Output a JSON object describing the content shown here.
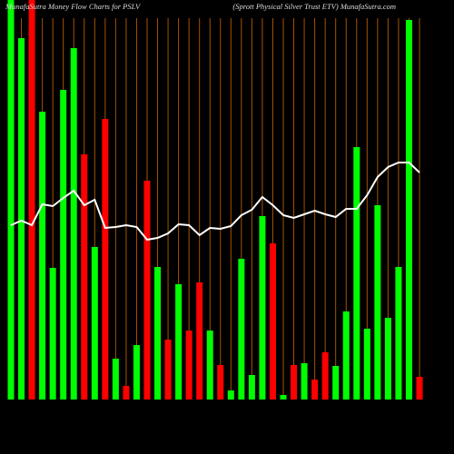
{
  "chart_data": {
    "type": "bar",
    "title": "MunafaSutra  Money Flow  Charts for PSLV",
    "subtitle": "(Sprott Physical Silver Trust ETV) MunafaSutra.com",
    "values": [
      440,
      398,
      440,
      317,
      145,
      341,
      387,
      270,
      168,
      309,
      45,
      15,
      60,
      241,
      146,
      66,
      127,
      76,
      129,
      76,
      38,
      10,
      155,
      27,
      202,
      172,
      5,
      38,
      40,
      22,
      52,
      37,
      97,
      278,
      78,
      214,
      90,
      146,
      418,
      25
    ],
    "colors": [
      "#00ff00",
      "#00ff00",
      "#ff0000",
      "#00ff00",
      "#00ff00",
      "#00ff00",
      "#00ff00",
      "#ff0000",
      "#00ff00",
      "#ff0000",
      "#00ff00",
      "#ff0000",
      "#00ff00",
      "#ff0000",
      "#00ff00",
      "#ff0000",
      "#00ff00",
      "#ff0000",
      "#ff0000",
      "#00ff00",
      "#ff0000",
      "#00ff00",
      "#00ff00",
      "#00ff00",
      "#00ff00",
      "#ff0000",
      "#00ff00",
      "#ff0000",
      "#00ff00",
      "#ff0000",
      "#ff0000",
      "#00ff00",
      "#00ff00",
      "#00ff00",
      "#00ff00",
      "#00ff00",
      "#00ff00",
      "#00ff00",
      "#00ff00",
      "#ff0000"
    ],
    "line": {
      "color": "#ffffff",
      "values": [
        192,
        197,
        192,
        215,
        213,
        222,
        230,
        214,
        220,
        189,
        190,
        192,
        190,
        176,
        178,
        183,
        193,
        192,
        181,
        189,
        188,
        191,
        203,
        209,
        223,
        214,
        203,
        200,
        204,
        208,
        204,
        201,
        210,
        210,
        225,
        245,
        256,
        261,
        261,
        250
      ]
    },
    "ylim": [
      0,
      440
    ],
    "grid": true,
    "grid_color": "#a65200"
  }
}
